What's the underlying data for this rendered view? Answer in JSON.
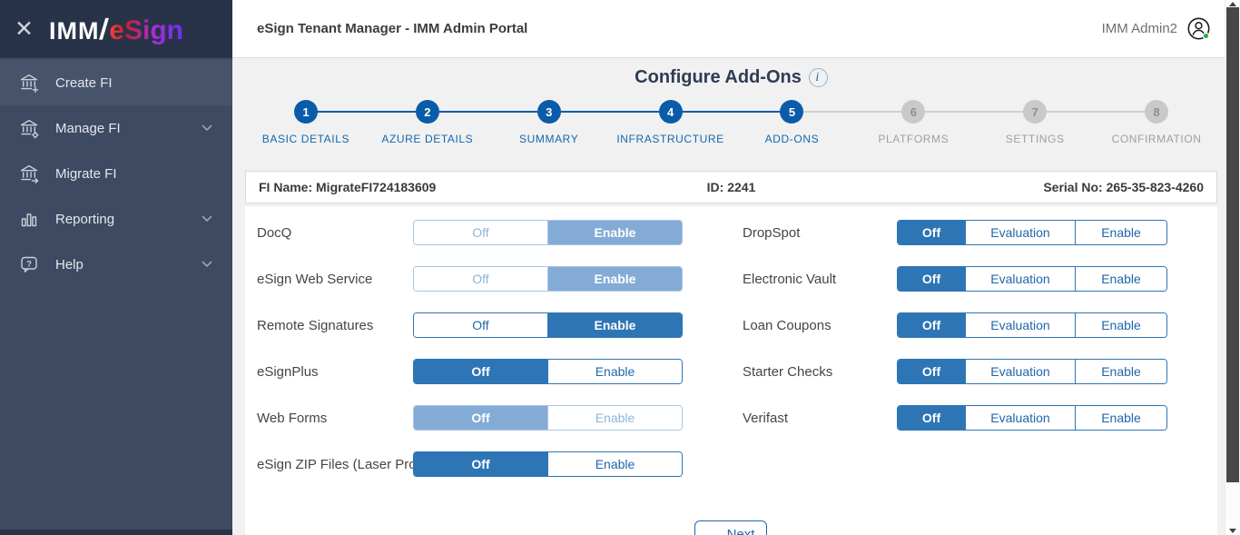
{
  "colors": {
    "accent_blue": "#2e75b5",
    "disabled_blue": "#84abd6",
    "step_blue": "#0b5ca8",
    "step_inactive_gray": "#c9c9c9",
    "sidebar_bg": "#3d4a62",
    "sidebar_top_bg": "#28334a",
    "sidebar_active_bg": "#46536b",
    "content_bg": "#f1f1f1",
    "title_navy": "#2f3c54",
    "online_green": "#27aa4b"
  },
  "sidebar": {
    "close_icon": "close-icon",
    "logo": {
      "imm": "IMM",
      "slash": "/",
      "esign": "eSign"
    },
    "items": [
      {
        "label": "Create FI",
        "icon": "bank-plus-icon",
        "active": true,
        "chevron": false
      },
      {
        "label": "Manage FI",
        "icon": "bank-gear-icon",
        "active": false,
        "chevron": true
      },
      {
        "label": "Migrate FI",
        "icon": "bank-arrow-icon",
        "active": false,
        "chevron": false
      },
      {
        "label": "Reporting",
        "icon": "bar-chart-icon",
        "active": false,
        "chevron": true
      },
      {
        "label": "Help",
        "icon": "help-bubble-icon",
        "active": false,
        "chevron": true
      }
    ]
  },
  "header": {
    "title": "eSign Tenant Manager - IMM Admin Portal",
    "user": "IMM Admin2",
    "avatar_icon": "user-avatar-icon",
    "online_status": true
  },
  "wizard": {
    "title": "Configure Add-Ons",
    "info_icon": "i",
    "steps": [
      {
        "number": "1",
        "label": "BASIC DETAILS",
        "state": "done"
      },
      {
        "number": "2",
        "label": "AZURE DETAILS",
        "state": "done"
      },
      {
        "number": "3",
        "label": "SUMMARY",
        "state": "done"
      },
      {
        "number": "4",
        "label": "INFRASTRUCTURE",
        "state": "done"
      },
      {
        "number": "5",
        "label": "ADD-ONS",
        "state": "active"
      },
      {
        "number": "6",
        "label": "PLATFORMS",
        "state": "todo"
      },
      {
        "number": "7",
        "label": "SETTINGS",
        "state": "todo"
      },
      {
        "number": "8",
        "label": "CONFIRMATION",
        "state": "todo"
      }
    ]
  },
  "fi_bar": {
    "fi_name": "FI Name: MigrateFI724183609",
    "id": "ID: 2241",
    "serial": "Serial No: 265-35-823-4260"
  },
  "addons": {
    "left": [
      {
        "label": "DocQ",
        "disabled": true,
        "options": [
          {
            "label": "Off",
            "style": "plain-dim"
          },
          {
            "label": "Enable",
            "style": "selected-light"
          }
        ]
      },
      {
        "label": "eSign Web Service",
        "disabled": true,
        "options": [
          {
            "label": "Off",
            "style": "plain-dim"
          },
          {
            "label": "Enable",
            "style": "selected-light"
          }
        ]
      },
      {
        "label": "Remote Signatures",
        "disabled": false,
        "options": [
          {
            "label": "Off",
            "style": "plain"
          },
          {
            "label": "Enable",
            "style": "selected"
          }
        ]
      },
      {
        "label": "eSignPlus",
        "disabled": false,
        "options": [
          {
            "label": "Off",
            "style": "selected"
          },
          {
            "label": "Enable",
            "style": "plain"
          }
        ]
      },
      {
        "label": "Web Forms",
        "disabled": true,
        "options": [
          {
            "label": "Off",
            "style": "selected-light"
          },
          {
            "label": "Enable",
            "style": "plain-dim"
          }
        ]
      },
      {
        "label": "eSign ZIP Files (Laser Pro)",
        "disabled": false,
        "options": [
          {
            "label": "Off",
            "style": "selected"
          },
          {
            "label": "Enable",
            "style": "plain"
          }
        ]
      }
    ],
    "right": [
      {
        "label": "DropSpot",
        "disabled": false,
        "options": [
          {
            "label": "Off",
            "style": "selected"
          },
          {
            "label": "Evaluation",
            "style": "plain"
          },
          {
            "label": "Enable",
            "style": "plain"
          }
        ]
      },
      {
        "label": "Electronic Vault",
        "disabled": false,
        "options": [
          {
            "label": "Off",
            "style": "selected"
          },
          {
            "label": "Evaluation",
            "style": "plain"
          },
          {
            "label": "Enable",
            "style": "plain"
          }
        ]
      },
      {
        "label": "Loan Coupons",
        "disabled": false,
        "options": [
          {
            "label": "Off",
            "style": "selected"
          },
          {
            "label": "Evaluation",
            "style": "plain"
          },
          {
            "label": "Enable",
            "style": "plain"
          }
        ]
      },
      {
        "label": "Starter Checks",
        "disabled": false,
        "options": [
          {
            "label": "Off",
            "style": "selected"
          },
          {
            "label": "Evaluation",
            "style": "plain"
          },
          {
            "label": "Enable",
            "style": "plain"
          }
        ]
      },
      {
        "label": "Verifast",
        "disabled": false,
        "options": [
          {
            "label": "Off",
            "style": "selected"
          },
          {
            "label": "Evaluation",
            "style": "plain"
          },
          {
            "label": "Enable",
            "style": "plain"
          }
        ]
      }
    ],
    "next_arrow": "→",
    "next_label": "Next"
  }
}
